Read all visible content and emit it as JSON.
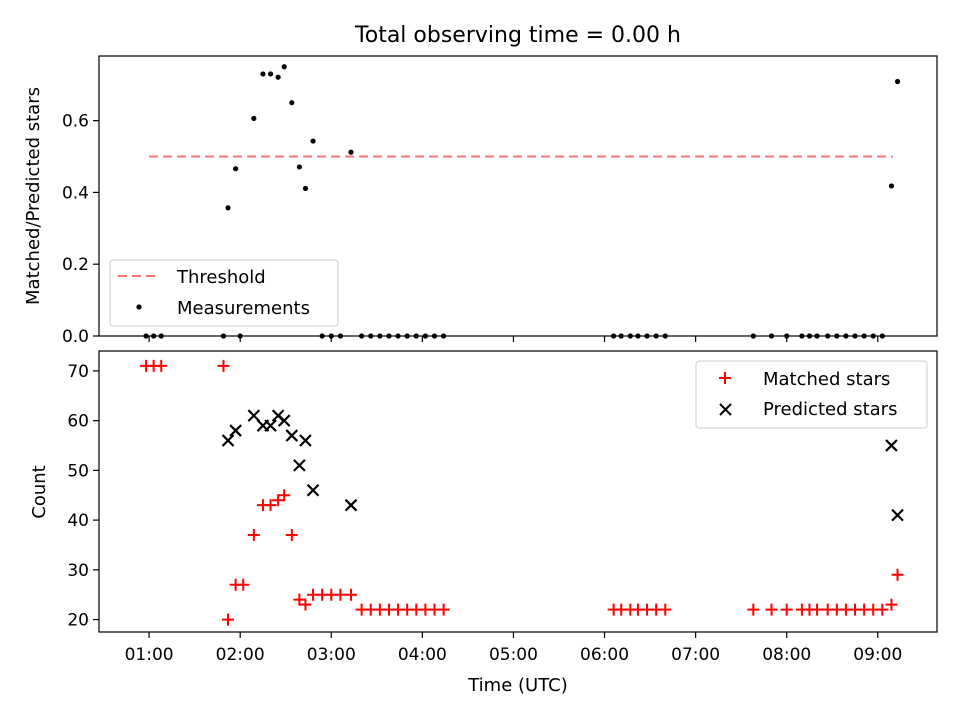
{
  "title": "Total observing time = 0.00 h",
  "xlabel": "Time (UTC)",
  "x_ticks": [
    "01:00",
    "02:00",
    "03:00",
    "04:00",
    "05:00",
    "06:00",
    "07:00",
    "08:00",
    "09:00"
  ],
  "colors": {
    "threshold": "#ff7070",
    "measurements": "#000000",
    "matched": "#ff0000",
    "predicted": "#000000"
  },
  "chart_data": [
    {
      "type": "scatter",
      "ylabel": "Matched/Predicted stars",
      "ylim": [
        0,
        0.78
      ],
      "yticks": [
        0.0,
        0.2,
        0.4,
        0.6
      ],
      "ytick_labels": [
        "0.0",
        "0.2",
        "0.4",
        "0.6"
      ],
      "xlim_hours": [
        0.45,
        9.65
      ],
      "legend_position": "lower-left",
      "threshold": {
        "name": "Threshold",
        "value": 0.5,
        "x_range": [
          "01:00",
          "09:10"
        ]
      },
      "series": [
        {
          "name": "Measurements",
          "points": [
            [
              "00:58",
              0
            ],
            [
              "01:03",
              0
            ],
            [
              "01:08",
              0
            ],
            [
              "01:49",
              0
            ],
            [
              "02:00",
              0
            ],
            [
              "01:52",
              0.357
            ],
            [
              "01:57",
              0.466
            ],
            [
              "02:09",
              0.606
            ],
            [
              "02:15",
              0.73
            ],
            [
              "02:20",
              0.73
            ],
            [
              "02:25",
              0.721
            ],
            [
              "02:29",
              0.75
            ],
            [
              "02:34",
              0.65
            ],
            [
              "02:39",
              0.471
            ],
            [
              "02:43",
              0.411
            ],
            [
              "02:48",
              0.543
            ],
            [
              "03:13",
              0.512
            ],
            [
              "02:54",
              0
            ],
            [
              "03:00",
              0
            ],
            [
              "03:06",
              0
            ],
            [
              "03:20",
              0
            ],
            [
              "03:26",
              0
            ],
            [
              "03:32",
              0
            ],
            [
              "03:38",
              0
            ],
            [
              "03:44",
              0
            ],
            [
              "03:50",
              0
            ],
            [
              "03:56",
              0
            ],
            [
              "04:02",
              0
            ],
            [
              "04:08",
              0
            ],
            [
              "04:14",
              0
            ],
            [
              "06:06",
              0
            ],
            [
              "06:11",
              0
            ],
            [
              "06:17",
              0
            ],
            [
              "06:22",
              0
            ],
            [
              "06:28",
              0
            ],
            [
              "06:34",
              0
            ],
            [
              "06:40",
              0
            ],
            [
              "07:38",
              0
            ],
            [
              "07:50",
              0
            ],
            [
              "08:00",
              0
            ],
            [
              "08:10",
              0
            ],
            [
              "08:15",
              0
            ],
            [
              "08:20",
              0
            ],
            [
              "08:27",
              0
            ],
            [
              "08:33",
              0
            ],
            [
              "08:39",
              0
            ],
            [
              "08:45",
              0
            ],
            [
              "08:51",
              0
            ],
            [
              "08:57",
              0
            ],
            [
              "09:03",
              0
            ],
            [
              "09:09",
              0.418
            ],
            [
              "09:13",
              0.709
            ]
          ]
        }
      ]
    },
    {
      "type": "scatter",
      "ylabel": "Count",
      "ylim": [
        17.5,
        74
      ],
      "yticks": [
        20,
        30,
        40,
        50,
        60,
        70
      ],
      "ytick_labels": [
        "20",
        "30",
        "40",
        "50",
        "60",
        "70"
      ],
      "xlim_hours": [
        0.45,
        9.65
      ],
      "legend_position": "top-right",
      "series": [
        {
          "name": "Matched stars",
          "points": [
            [
              "00:58",
              71
            ],
            [
              "01:03",
              71
            ],
            [
              "01:08",
              71
            ],
            [
              "01:49",
              71
            ],
            [
              "01:52",
              20
            ],
            [
              "01:57",
              27
            ],
            [
              "02:02",
              27
            ],
            [
              "02:09",
              37
            ],
            [
              "02:15",
              43
            ],
            [
              "02:20",
              43
            ],
            [
              "02:25",
              44
            ],
            [
              "02:29",
              45
            ],
            [
              "02:34",
              37
            ],
            [
              "02:39",
              24
            ],
            [
              "02:43",
              23
            ],
            [
              "02:48",
              25
            ],
            [
              "02:54",
              25
            ],
            [
              "03:00",
              25
            ],
            [
              "03:06",
              25
            ],
            [
              "03:13",
              25
            ],
            [
              "03:20",
              22
            ],
            [
              "03:26",
              22
            ],
            [
              "03:32",
              22
            ],
            [
              "03:38",
              22
            ],
            [
              "03:44",
              22
            ],
            [
              "03:50",
              22
            ],
            [
              "03:56",
              22
            ],
            [
              "04:02",
              22
            ],
            [
              "04:08",
              22
            ],
            [
              "04:14",
              22
            ],
            [
              "06:06",
              22
            ],
            [
              "06:11",
              22
            ],
            [
              "06:17",
              22
            ],
            [
              "06:22",
              22
            ],
            [
              "06:28",
              22
            ],
            [
              "06:34",
              22
            ],
            [
              "06:40",
              22
            ],
            [
              "07:38",
              22
            ],
            [
              "07:50",
              22
            ],
            [
              "08:00",
              22
            ],
            [
              "08:10",
              22
            ],
            [
              "08:15",
              22
            ],
            [
              "08:20",
              22
            ],
            [
              "08:27",
              22
            ],
            [
              "08:33",
              22
            ],
            [
              "08:39",
              22
            ],
            [
              "08:45",
              22
            ],
            [
              "08:51",
              22
            ],
            [
              "08:57",
              22
            ],
            [
              "09:03",
              22
            ],
            [
              "09:09",
              23
            ],
            [
              "09:13",
              29
            ]
          ]
        },
        {
          "name": "Predicted stars",
          "points": [
            [
              "01:52",
              56
            ],
            [
              "01:57",
              58
            ],
            [
              "02:09",
              61
            ],
            [
              "02:15",
              59
            ],
            [
              "02:20",
              59
            ],
            [
              "02:25",
              61
            ],
            [
              "02:29",
              60
            ],
            [
              "02:34",
              57
            ],
            [
              "02:39",
              51
            ],
            [
              "02:43",
              56
            ],
            [
              "02:48",
              46
            ],
            [
              "03:13",
              43
            ],
            [
              "09:09",
              55
            ],
            [
              "09:13",
              41
            ]
          ]
        }
      ]
    }
  ]
}
